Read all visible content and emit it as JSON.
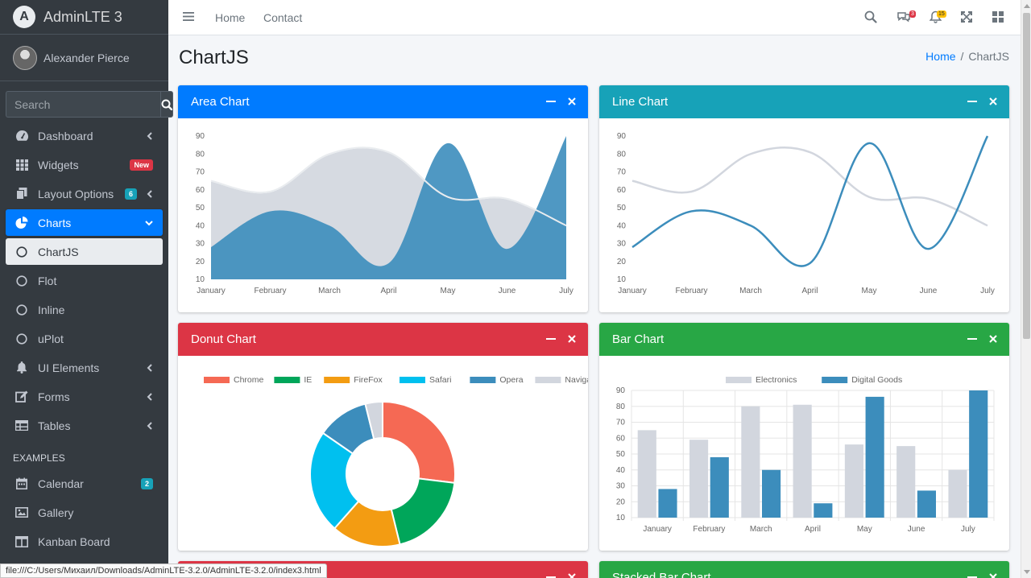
{
  "brand": {
    "name": "AdminLTE 3",
    "logo_letter": "A"
  },
  "user": {
    "name": "Alexander Pierce"
  },
  "search": {
    "placeholder": "Search"
  },
  "nav": {
    "dashboard": "Dashboard",
    "widgets": "Widgets",
    "widgets_badge": "New",
    "layout": "Layout Options",
    "layout_badge": "6",
    "charts": "Charts",
    "chartjs": "ChartJS",
    "flot": "Flot",
    "inline": "Inline",
    "uplot": "uPlot",
    "ui": "UI Elements",
    "forms": "Forms",
    "tables": "Tables",
    "examples_header": "EXAMPLES",
    "calendar": "Calendar",
    "calendar_badge": "2",
    "gallery": "Gallery",
    "kanban": "Kanban Board"
  },
  "topnav": {
    "home": "Home",
    "contact": "Contact",
    "messages_count": "3",
    "notifications_count": "15"
  },
  "page": {
    "title": "ChartJS",
    "breadcrumb_home": "Home",
    "breadcrumb_current": "ChartJS"
  },
  "cards": {
    "area": "Area Chart",
    "line": "Line Chart",
    "donut": "Donut Chart",
    "bar": "Bar Chart",
    "pie": "",
    "stacked": "Stacked Bar Chart"
  },
  "colors": {
    "primary": "#007bff",
    "info": "#17a2b8",
    "danger": "#dc3545",
    "success": "#28a745",
    "sidebar": "#343a40",
    "series_dark": "#3c8dbc",
    "series_light": "#d2d6de"
  },
  "status_url": "file:///C:/Users/Михаил/Downloads/AdminLTE-3.2.0/AdminLTE-3.2.0/index3.html",
  "chart_data": [
    {
      "type": "area",
      "title": "Area Chart",
      "categories": [
        "January",
        "February",
        "March",
        "April",
        "May",
        "June",
        "July"
      ],
      "ylim": [
        10,
        90
      ],
      "yticks": [
        10,
        20,
        30,
        40,
        50,
        60,
        70,
        80,
        90
      ],
      "series": [
        {
          "values": [
            65,
            59,
            80,
            81,
            56,
            55,
            40
          ],
          "color": "#d2d6de"
        },
        {
          "values": [
            28,
            48,
            40,
            19,
            86,
            27,
            90
          ],
          "color": "#3c8dbc"
        }
      ],
      "grid": false
    },
    {
      "type": "line",
      "title": "Line Chart",
      "categories": [
        "January",
        "February",
        "March",
        "April",
        "May",
        "June",
        "July"
      ],
      "ylim": [
        10,
        90
      ],
      "yticks": [
        10,
        20,
        30,
        40,
        50,
        60,
        70,
        80,
        90
      ],
      "series": [
        {
          "values": [
            65,
            59,
            80,
            81,
            56,
            55,
            40
          ],
          "color": "#d2d6de"
        },
        {
          "values": [
            28,
            48,
            40,
            19,
            86,
            27,
            90
          ],
          "color": "#3c8dbc"
        }
      ],
      "grid": false
    },
    {
      "type": "pie",
      "title": "Donut Chart",
      "donut": true,
      "legend": "top",
      "labels": [
        "Chrome",
        "IE",
        "FireFox",
        "Safari",
        "Opera",
        "Navigator"
      ],
      "values": [
        700,
        500,
        400,
        600,
        300,
        100
      ],
      "colors": [
        "#f56954",
        "#00a65a",
        "#f39c12",
        "#00c0ef",
        "#3c8dbc",
        "#d2d6de"
      ]
    },
    {
      "type": "bar",
      "title": "Bar Chart",
      "legend": "top",
      "categories": [
        "January",
        "February",
        "March",
        "April",
        "May",
        "June",
        "July"
      ],
      "ylim": [
        10,
        90
      ],
      "yticks": [
        10,
        20,
        30,
        40,
        50,
        60,
        70,
        80,
        90
      ],
      "series": [
        {
          "name": "Electronics",
          "values": [
            65,
            59,
            80,
            81,
            56,
            55,
            40
          ],
          "color": "#d2d6de"
        },
        {
          "name": "Digital Goods",
          "values": [
            28,
            48,
            40,
            19,
            86,
            27,
            90
          ],
          "color": "#3c8dbc"
        }
      ],
      "grid": true
    }
  ]
}
